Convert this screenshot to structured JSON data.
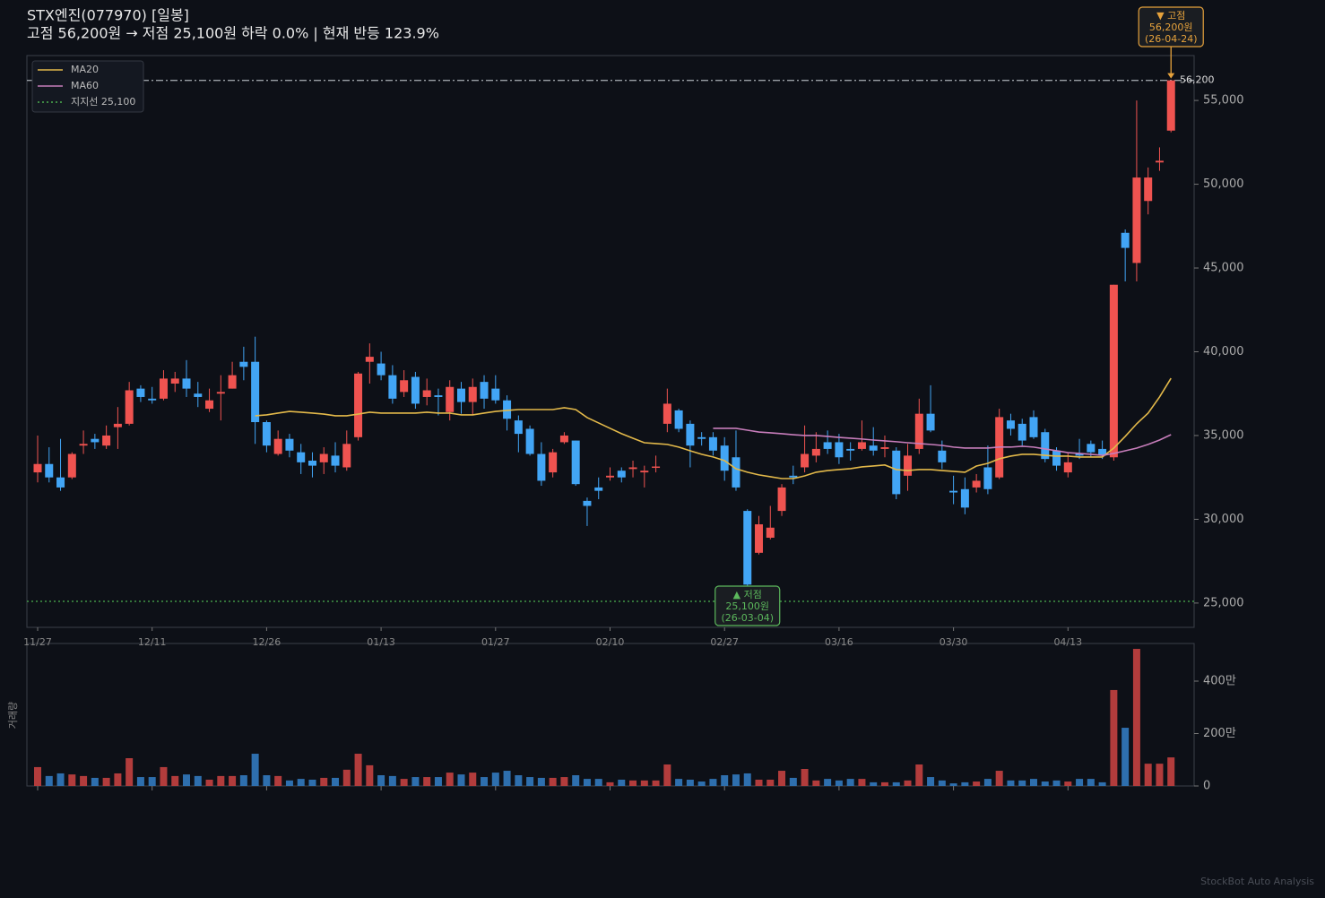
{
  "chart_data": [
    {
      "type": "candlestick",
      "title": "STX엔진(077970)  [일봉]",
      "subtitle": "고점 56,200원 → 저점 25,100원  하락 0.0%  |  현재 반등 123.9%",
      "categories": [
        "11/27",
        null,
        null,
        null,
        null,
        null,
        null,
        null,
        null,
        null,
        "12/11",
        null,
        null,
        null,
        null,
        null,
        null,
        null,
        null,
        null,
        "12/26",
        null,
        null,
        null,
        null,
        null,
        null,
        null,
        null,
        null,
        "01/13",
        null,
        null,
        null,
        null,
        null,
        null,
        null,
        null,
        null,
        "01/27",
        null,
        null,
        null,
        null,
        null,
        null,
        null,
        null,
        null,
        "02/10",
        null,
        null,
        null,
        null,
        null,
        null,
        null,
        null,
        null,
        "02/27",
        null,
        null,
        null,
        null,
        null,
        null,
        null,
        null,
        null,
        "03/16",
        null,
        null,
        null,
        null,
        null,
        null,
        null,
        null,
        null,
        "03/30",
        null,
        null,
        null,
        null,
        null,
        null,
        null,
        null,
        null,
        "04/13",
        null,
        null,
        null,
        null,
        null,
        null,
        null,
        null,
        null
      ],
      "open": [
        32800,
        33300,
        32500,
        32500,
        34400,
        34800,
        34400,
        35500,
        35700,
        37800,
        37200,
        37200,
        38100,
        38400,
        37500,
        36600,
        37500,
        37800,
        39400,
        39400,
        35800,
        33900,
        34800,
        34000,
        33500,
        33400,
        33800,
        33100,
        34900,
        39400,
        39300,
        38600,
        37600,
        38500,
        37300,
        37400,
        36400,
        37800,
        37000,
        38200,
        37800,
        37100,
        35900,
        35400,
        33900,
        32800,
        34600,
        34700,
        31100,
        31900,
        32500,
        32900,
        33000,
        32800,
        33100,
        35700,
        36500,
        35700,
        34900,
        34900,
        34400,
        33700,
        30500,
        28000,
        28900,
        30500,
        32600,
        33100,
        33800,
        34600,
        34600,
        34200,
        34200,
        34400,
        34200,
        34100,
        32600,
        34200,
        36300,
        34100,
        31700,
        31800,
        31900,
        33100,
        32500,
        35900,
        35700,
        36100,
        35200,
        34100,
        32800,
        33900,
        34500,
        34200,
        33700,
        47100,
        45300,
        49000,
        51300,
        53200
      ],
      "high": [
        35000,
        34300,
        34800,
        34000,
        35300,
        35100,
        35600,
        36700,
        38200,
        38000,
        37900,
        38900,
        38800,
        39500,
        38200,
        37800,
        38600,
        39400,
        40300,
        40900,
        35900,
        35300,
        35100,
        34500,
        34000,
        34300,
        34600,
        35300,
        38800,
        40500,
        40000,
        39200,
        38900,
        38800,
        38400,
        37800,
        38300,
        38200,
        38400,
        38600,
        38600,
        37400,
        36200,
        35600,
        34600,
        34200,
        35200,
        34700,
        31300,
        32500,
        33100,
        33100,
        33500,
        33200,
        33800,
        37800,
        36600,
        35900,
        35200,
        35200,
        34900,
        35300,
        30600,
        30200,
        30800,
        32100,
        33200,
        35600,
        35200,
        35300,
        35100,
        34600,
        35900,
        35500,
        35000,
        34300,
        34500,
        37200,
        38000,
        34700,
        32600,
        32500,
        32700,
        34400,
        36600,
        36300,
        36000,
        36500,
        35400,
        34300,
        34000,
        34800,
        34700,
        34700,
        44000,
        47300,
        55000,
        51000,
        52200,
        56200
      ],
      "low": [
        32200,
        32200,
        31700,
        32400,
        33900,
        34200,
        34200,
        34200,
        35600,
        37000,
        36900,
        37100,
        37600,
        37300,
        36700,
        36400,
        35900,
        37800,
        38300,
        34500,
        34000,
        33800,
        33700,
        32700,
        32500,
        32700,
        32800,
        32900,
        34700,
        38100,
        38300,
        36900,
        37300,
        36600,
        36800,
        36200,
        35900,
        36300,
        36200,
        36600,
        36900,
        35300,
        34000,
        33800,
        32000,
        32500,
        34500,
        32000,
        29600,
        31200,
        32300,
        32200,
        32500,
        31900,
        32800,
        35200,
        35200,
        33100,
        34400,
        33800,
        32300,
        31700,
        25100,
        27900,
        28800,
        30200,
        32100,
        32800,
        33400,
        33900,
        33300,
        33500,
        34100,
        33800,
        33700,
        31200,
        31700,
        33900,
        35200,
        33000,
        30900,
        30300,
        31600,
        31500,
        32400,
        35000,
        34400,
        34800,
        33400,
        32900,
        32500,
        33600,
        33700,
        33600,
        33500,
        44200,
        44200,
        48200,
        50800,
        53100
      ],
      "close": [
        33300,
        32500,
        31900,
        33900,
        34500,
        34600,
        35000,
        35700,
        37700,
        37300,
        37100,
        38400,
        38400,
        37800,
        37300,
        37100,
        37600,
        38600,
        39100,
        35800,
        34400,
        34800,
        34100,
        33400,
        33200,
        33900,
        33200,
        34500,
        38700,
        39700,
        38600,
        37200,
        38300,
        36900,
        37700,
        37300,
        37900,
        37000,
        37900,
        37200,
        37100,
        36000,
        35100,
        33900,
        32300,
        34000,
        35000,
        32100,
        30800,
        31700,
        32600,
        32500,
        33100,
        32900,
        33150,
        36900,
        35400,
        34400,
        34800,
        34100,
        32900,
        31900,
        26100,
        29700,
        29500,
        31900,
        32500,
        33900,
        34200,
        34200,
        33700,
        34100,
        34600,
        34100,
        34300,
        31500,
        33800,
        36300,
        35300,
        33400,
        31600,
        30700,
        32300,
        31800,
        36100,
        35400,
        34700,
        34900,
        33600,
        33200,
        33400,
        33800,
        34000,
        33800,
        44000,
        46200,
        50400,
        50400,
        51400,
        56200
      ],
      "up_color": "#ef5350",
      "down_color": "#42a5f5",
      "ylim": [
        23550,
        57680
      ],
      "yticks": [
        {
          "value": 25000,
          "label": "25,000"
        },
        {
          "value": 30000,
          "label": "30,000"
        },
        {
          "value": 35000,
          "label": "35,000"
        },
        {
          "value": 40000,
          "label": "40,000"
        },
        {
          "value": 45000,
          "label": "45,000"
        },
        {
          "value": 50000,
          "label": "50,000"
        },
        {
          "value": 55000,
          "label": "55,000"
        }
      ],
      "series": [
        {
          "name": "MA20",
          "color": "#e3b94a",
          "values": [
            null,
            null,
            null,
            null,
            null,
            null,
            null,
            null,
            null,
            null,
            null,
            null,
            null,
            null,
            null,
            null,
            null,
            null,
            null,
            36180,
            36230,
            36340,
            36440,
            36390,
            36340,
            36280,
            36180,
            36180,
            36280,
            36390,
            36340,
            36340,
            36340,
            36340,
            36390,
            36340,
            36340,
            36230,
            36230,
            36340,
            36440,
            36500,
            36550,
            36550,
            36550,
            36550,
            36660,
            36550,
            36070,
            35750,
            35430,
            35110,
            34840,
            34570,
            34520,
            34470,
            34310,
            34090,
            33880,
            33720,
            33500,
            33020,
            32810,
            32650,
            32540,
            32430,
            32430,
            32590,
            32810,
            32910,
            32970,
            33020,
            33130,
            33180,
            33240,
            32970,
            32910,
            32970,
            32970,
            32910,
            32860,
            32810,
            33180,
            33340,
            33610,
            33770,
            33880,
            33880,
            33820,
            33770,
            33770,
            33720,
            33720,
            33720,
            34250,
            34950,
            35700,
            36340,
            37300,
            38420
          ]
        },
        {
          "name": "MA60",
          "color": "#c77dbb",
          "values": [
            null,
            null,
            null,
            null,
            null,
            null,
            null,
            null,
            null,
            null,
            null,
            null,
            null,
            null,
            null,
            null,
            null,
            null,
            null,
            null,
            null,
            null,
            null,
            null,
            null,
            null,
            null,
            null,
            null,
            null,
            null,
            null,
            null,
            null,
            null,
            null,
            null,
            null,
            null,
            null,
            null,
            null,
            null,
            null,
            null,
            null,
            null,
            null,
            null,
            null,
            null,
            null,
            null,
            null,
            null,
            null,
            null,
            null,
            null,
            35430,
            35430,
            35430,
            35320,
            35210,
            35160,
            35110,
            35050,
            35000,
            35000,
            34950,
            34890,
            34840,
            34790,
            34730,
            34680,
            34630,
            34570,
            34520,
            34470,
            34410,
            34310,
            34250,
            34250,
            34250,
            34310,
            34310,
            34360,
            34310,
            34200,
            34090,
            33980,
            33930,
            33880,
            33820,
            33930,
            34090,
            34250,
            34470,
            34730,
            35050
          ]
        }
      ],
      "hlines": [
        {
          "value": 56200,
          "label": "56,200",
          "color": "#9aa0a6",
          "style": "dashdot"
        },
        {
          "name": "지지선 25,100",
          "value": 25100,
          "color": "#4caf50",
          "style": "dotted"
        }
      ],
      "annotations": [
        {
          "lines": [
            "▼ 고점",
            "56,200원",
            "(26-04-24)"
          ],
          "index": 99,
          "value": 56200,
          "color": "#e6a23c",
          "position": "above"
        },
        {
          "lines": [
            "▲ 저점",
            "25,100원",
            "(26-03-04)"
          ],
          "index": 62,
          "value": 25100,
          "color": "#5cb85c",
          "position": "inline"
        }
      ],
      "legend": "upper left"
    },
    {
      "type": "bar",
      "ylabel": "거래량",
      "values": [
        72,
        38,
        48,
        44,
        38,
        31,
        31,
        48,
        106,
        34,
        34,
        72,
        38,
        44,
        38,
        24,
        38,
        38,
        41,
        123,
        41,
        38,
        21,
        27,
        24,
        31,
        31,
        62,
        123,
        79,
        41,
        38,
        27,
        34,
        34,
        34,
        51,
        44,
        51,
        34,
        51,
        58,
        41,
        34,
        31,
        31,
        34,
        41,
        27,
        27,
        14,
        24,
        21,
        21,
        21,
        82,
        27,
        24,
        17,
        27,
        41,
        44,
        48,
        24,
        24,
        58,
        31,
        65,
        21,
        27,
        21,
        27,
        27,
        14,
        14,
        14,
        21,
        82,
        34,
        21,
        10,
        14,
        17,
        27,
        58,
        21,
        21,
        27,
        17,
        21,
        17,
        27,
        27,
        14,
        366,
        222,
        523,
        85,
        85,
        109
      ],
      "up_color": "#b23c3c",
      "down_color": "#2e6fae",
      "ylim": [
        0,
        543.6
      ],
      "yticks": [
        0,
        {
          "value": 200,
          "label": "200만"
        },
        {
          "value": 400,
          "label": "400만"
        }
      ]
    },
    {
      "watermark": "StockBot Auto Analysis"
    }
  ]
}
